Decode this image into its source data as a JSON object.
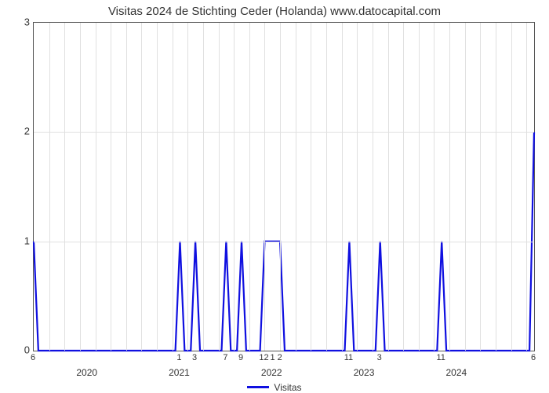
{
  "chart": {
    "type": "line",
    "title": "Visitas 2024 de Stichting Ceder (Holanda) www.datocapital.com",
    "title_fontsize": 15,
    "title_color": "#333333",
    "background_color": "#ffffff",
    "plot_border_color": "#555555",
    "grid_color": "#e0e0e0",
    "line_color": "#1010e0",
    "line_width": 2.2,
    "x_domain_months": 65,
    "ylim": [
      0,
      3
    ],
    "yticks": [
      0,
      1,
      2,
      3
    ],
    "year_labels": [
      {
        "x": 7,
        "label": "2020"
      },
      {
        "x": 19,
        "label": "2021"
      },
      {
        "x": 31,
        "label": "2022"
      },
      {
        "x": 43,
        "label": "2023"
      },
      {
        "x": 55,
        "label": "2024"
      }
    ],
    "month_labels": [
      {
        "x": 0,
        "label": "6"
      },
      {
        "x": 19,
        "label": "1"
      },
      {
        "x": 21,
        "label": "3"
      },
      {
        "x": 25,
        "label": "7"
      },
      {
        "x": 27,
        "label": "9"
      },
      {
        "x": 30,
        "label": "12"
      },
      {
        "x": 31.6,
        "label": "1 2"
      },
      {
        "x": 41,
        "label": "11"
      },
      {
        "x": 45,
        "label": "3"
      },
      {
        "x": 53,
        "label": "11"
      },
      {
        "x": 65,
        "label": "6"
      }
    ],
    "data": [
      {
        "x": 0,
        "y": 1
      },
      {
        "x": 0.6,
        "y": 0
      },
      {
        "x": 18.4,
        "y": 0
      },
      {
        "x": 19,
        "y": 1
      },
      {
        "x": 19.6,
        "y": 0
      },
      {
        "x": 20.4,
        "y": 0
      },
      {
        "x": 21,
        "y": 1
      },
      {
        "x": 21.6,
        "y": 0
      },
      {
        "x": 24.4,
        "y": 0
      },
      {
        "x": 25,
        "y": 1
      },
      {
        "x": 25.6,
        "y": 0
      },
      {
        "x": 26.4,
        "y": 0
      },
      {
        "x": 27,
        "y": 1
      },
      {
        "x": 27.6,
        "y": 0
      },
      {
        "x": 29.4,
        "y": 0
      },
      {
        "x": 30,
        "y": 1
      },
      {
        "x": 32,
        "y": 1
      },
      {
        "x": 32.6,
        "y": 0
      },
      {
        "x": 40.4,
        "y": 0
      },
      {
        "x": 41,
        "y": 1
      },
      {
        "x": 41.6,
        "y": 0
      },
      {
        "x": 44.4,
        "y": 0
      },
      {
        "x": 45,
        "y": 1
      },
      {
        "x": 45.6,
        "y": 0
      },
      {
        "x": 52.4,
        "y": 0
      },
      {
        "x": 53,
        "y": 1
      },
      {
        "x": 53.6,
        "y": 0
      },
      {
        "x": 64.4,
        "y": 0
      },
      {
        "x": 65,
        "y": 2
      }
    ],
    "legend": {
      "label": "Visitas",
      "color": "#1010e0"
    }
  }
}
